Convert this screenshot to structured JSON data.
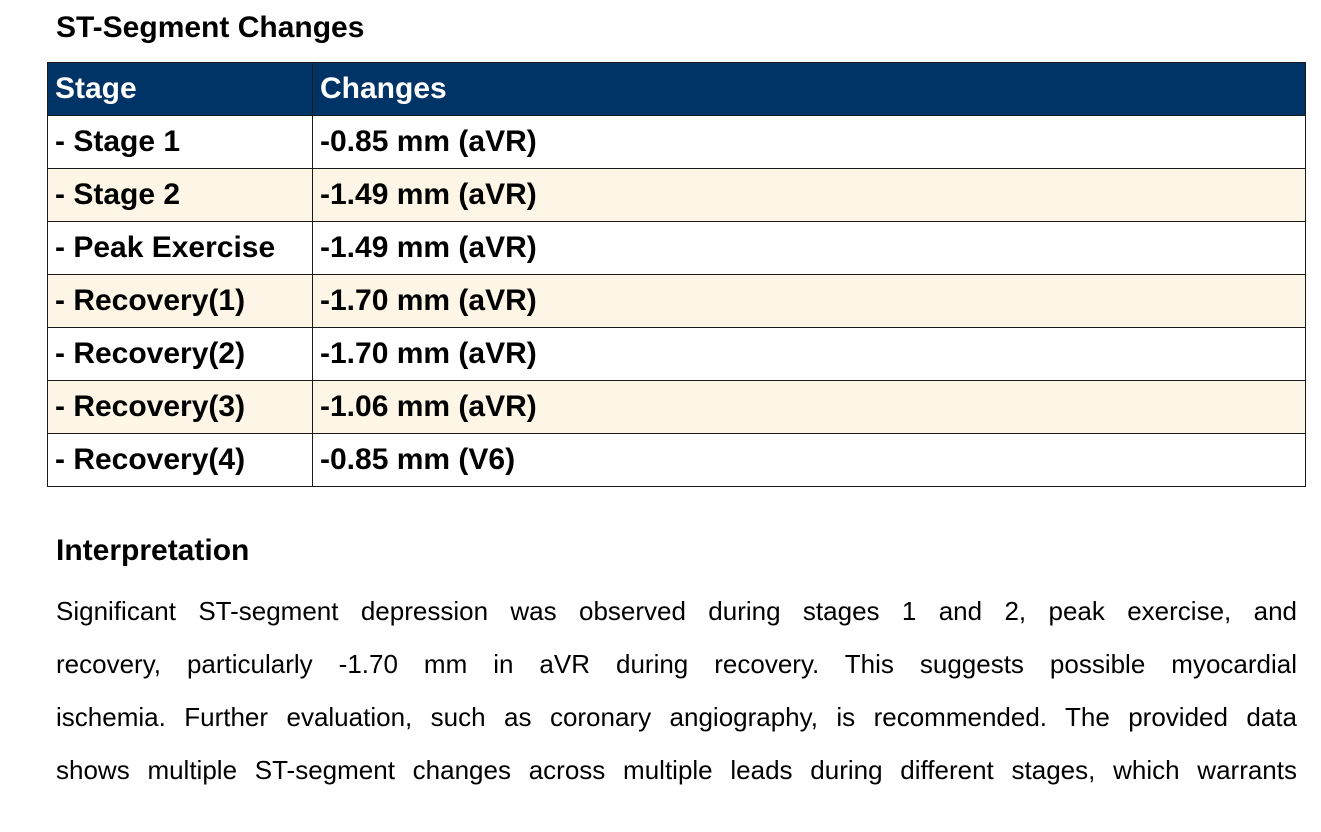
{
  "st_section": {
    "title": "ST-Segment Changes",
    "columns": [
      "Stage",
      "Changes"
    ],
    "rows": [
      {
        "stage": "- Stage 1",
        "change": "-0.85 mm (aVR)"
      },
      {
        "stage": "- Stage 2",
        "change": "-1.49 mm (aVR)"
      },
      {
        "stage": "- Peak Exercise",
        "change": "-1.49 mm (aVR)"
      },
      {
        "stage": "- Recovery(1)",
        "change": "-1.70 mm (aVR)"
      },
      {
        "stage": "- Recovery(2)",
        "change": "-1.70 mm (aVR)"
      },
      {
        "stage": "- Recovery(3)",
        "change": "-1.06 mm (aVR)"
      },
      {
        "stage": "- Recovery(4)",
        "change": "-0.85 mm (V6)"
      }
    ]
  },
  "interpretation": {
    "title": "Interpretation",
    "lines": [
      "Significant ST-segment depression was observed during stages 1 and 2, peak exercise, and",
      "recovery, particularly -1.70 mm in aVR during recovery. This suggests possible myocardial",
      "ischemia. Further evaluation, such as coronary angiography, is recommended.  The provided data",
      "shows multiple ST-segment changes across multiple leads during different stages, which warrants"
    ]
  },
  "colors": {
    "header_bg": "#003366",
    "header_text": "#ffffff",
    "row_alt_bg": "#fdf5e6",
    "row_bg": "#ffffff",
    "border": "#1a1a1a"
  }
}
